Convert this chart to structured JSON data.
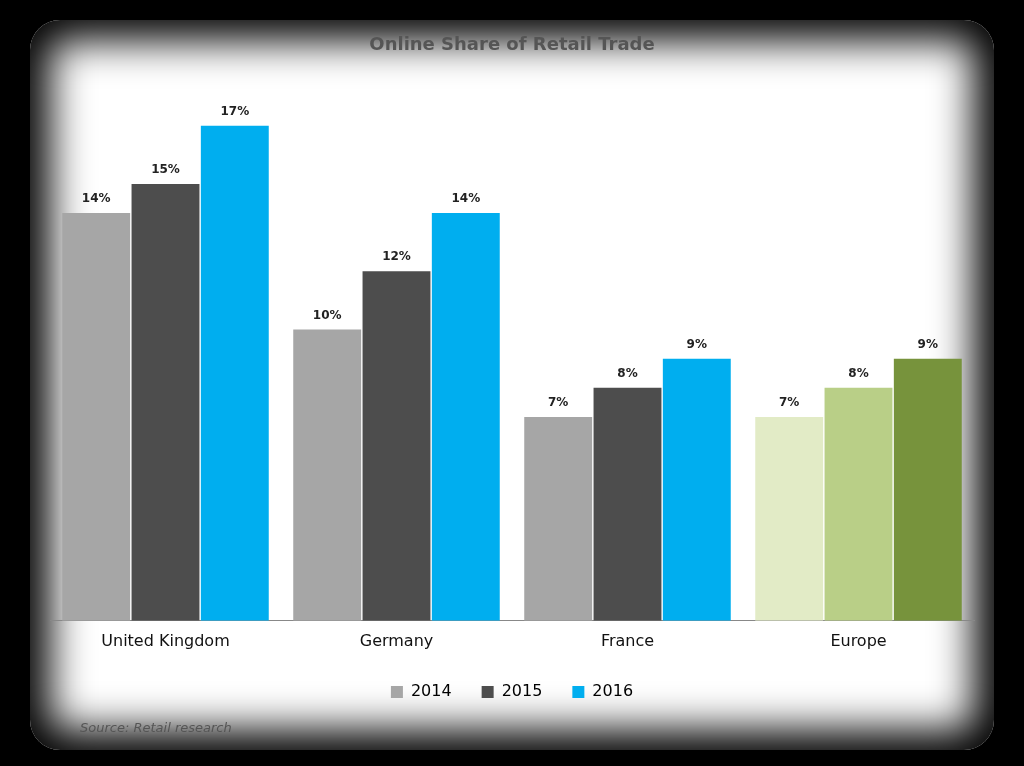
{
  "chart_data": {
    "type": "bar",
    "title": "Online Share of Retail Trade",
    "categories": [
      "United Kingdom",
      "Germany",
      "France",
      "Europe"
    ],
    "series": [
      {
        "name": "2014",
        "color": "#a6a6a6",
        "colors": [
          "#a6a6a6",
          "#a6a6a6",
          "#a6a6a6",
          "#e2ebc6"
        ],
        "values": [
          14,
          10,
          7,
          7
        ],
        "value_labels": [
          "14%",
          "10%",
          "7%",
          "7%"
        ]
      },
      {
        "name": "2015",
        "color": "#4d4d4d",
        "colors": [
          "#4d4d4d",
          "#4d4d4d",
          "#4d4d4d",
          "#b9cf87"
        ],
        "values": [
          15,
          12,
          8,
          8
        ],
        "value_labels": [
          "15%",
          "12%",
          "8%",
          "8%"
        ]
      },
      {
        "name": "2016",
        "color": "#00aeef",
        "colors": [
          "#00aeef",
          "#00aeef",
          "#00aeef",
          "#77933c"
        ],
        "values": [
          17,
          14,
          9,
          9
        ],
        "value_labels": [
          "17%",
          "14%",
          "9%",
          "9%"
        ]
      }
    ],
    "legend": "bottom",
    "grid": false,
    "annotations": [
      "Source: Retail research"
    ]
  }
}
